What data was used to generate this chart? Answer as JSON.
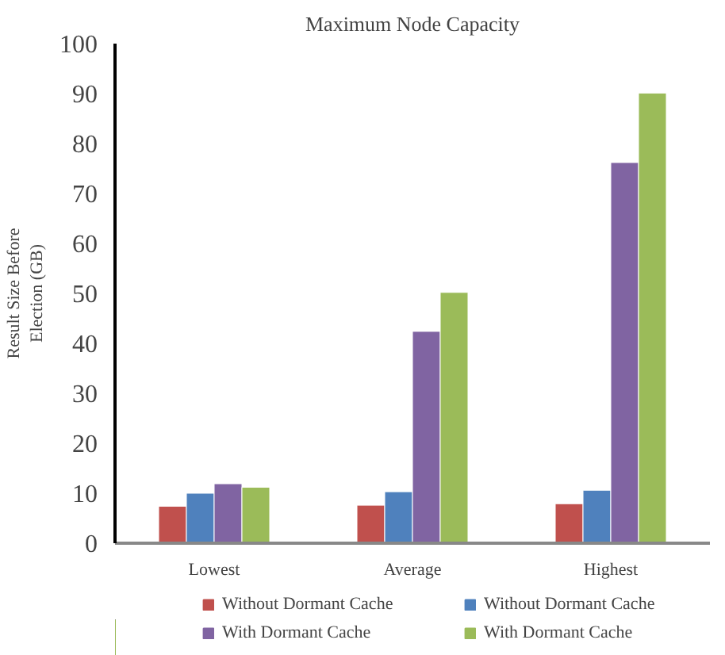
{
  "chart_data": {
    "type": "bar",
    "title": "Maximum Node Capacity",
    "ylabel": "Result Size Before\nElection (GB)",
    "categories": [
      "Lowest",
      "Average",
      "Highest"
    ],
    "series": [
      {
        "name": "Without Dormant Cache",
        "color": "#c0504d",
        "values": [
          7.4,
          7.6,
          7.9
        ]
      },
      {
        "name": "Without Dormant Cache",
        "color": "#4f81bd",
        "values": [
          10.0,
          10.3,
          10.6
        ]
      },
      {
        "name": "With Dormant Cache",
        "color": "#8064a2",
        "values": [
          11.9,
          42.4,
          76.2
        ]
      },
      {
        "name": "With Dormant Cache",
        "color": "#9bbb59",
        "values": [
          11.2,
          50.2,
          90.1
        ]
      }
    ],
    "ylim": [
      0,
      100
    ],
    "yticks": [
      0,
      10,
      20,
      30,
      40,
      50,
      60,
      70,
      80,
      90,
      100
    ],
    "grid": false,
    "legend": "bottom"
  }
}
